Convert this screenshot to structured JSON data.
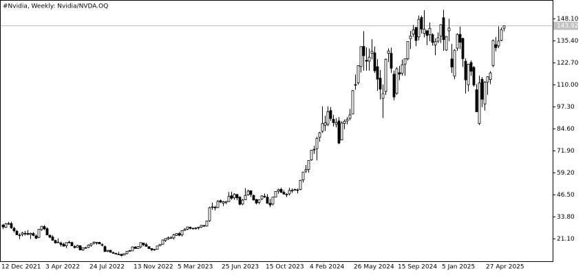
{
  "chart_data": {
    "type": "candlestick",
    "title": "#Nvidia, Weekly:  Nvidia/NVDA.OQ",
    "ylim": [
      8.0,
      158.8
    ],
    "yticks": [
      {
        "value": 21.1,
        "label": "21.10"
      },
      {
        "value": 33.8,
        "label": "33.80"
      },
      {
        "value": 46.5,
        "label": "46.50"
      },
      {
        "value": 59.2,
        "label": "59.20"
      },
      {
        "value": 71.9,
        "label": "71.90"
      },
      {
        "value": 84.6,
        "label": "84.60"
      },
      {
        "value": 97.3,
        "label": "97.30"
      },
      {
        "value": 110.0,
        "label": "110.00"
      },
      {
        "value": 122.7,
        "label": "122.70"
      },
      {
        "value": 135.4,
        "label": "135.40"
      },
      {
        "value": 148.1,
        "label": "148.10"
      }
    ],
    "last_price": 143.92,
    "up_color": "#ffffff",
    "down_color": "#000000",
    "line_color": "#000000",
    "price_line_color": "#c0c0c0",
    "categories": [
      "12 Dec 2021",
      null,
      null,
      null,
      null,
      null,
      null,
      null,
      null,
      null,
      null,
      null,
      null,
      null,
      null,
      null,
      "3 Apr 2022",
      null,
      null,
      null,
      null,
      null,
      null,
      null,
      null,
      null,
      null,
      null,
      null,
      null,
      null,
      null,
      "24 Jul 2022",
      null,
      null,
      null,
      null,
      null,
      null,
      null,
      null,
      null,
      null,
      null,
      null,
      null,
      null,
      null,
      "13 Nov 2022",
      null,
      null,
      null,
      null,
      null,
      null,
      null,
      null,
      null,
      null,
      null,
      null,
      null,
      null,
      null,
      "5 Mar 2023",
      null,
      null,
      null,
      null,
      null,
      null,
      null,
      null,
      null,
      null,
      null,
      null,
      null,
      null,
      null,
      "25 Jun 2023",
      null,
      null,
      null,
      null,
      null,
      null,
      null,
      null,
      null,
      null,
      null,
      null,
      null,
      null,
      null,
      "15 Oct 2023",
      null,
      null,
      null,
      null,
      null,
      null,
      null,
      null,
      null,
      null,
      null,
      null,
      null,
      null,
      null,
      "4 Feb 2024",
      null,
      null,
      null,
      null,
      null,
      null,
      null,
      null,
      null,
      null,
      null,
      null,
      null,
      null,
      null,
      "26 May 2024",
      null,
      null,
      null,
      null,
      null,
      null,
      null,
      null,
      null,
      null,
      null,
      null,
      null,
      null,
      null,
      "15 Sep 2024",
      null,
      null,
      null,
      null,
      null,
      null,
      null,
      null,
      null,
      null,
      null,
      null,
      null,
      null,
      null,
      "5 Jan 2025",
      null,
      null,
      null,
      null,
      null,
      null,
      null,
      null,
      null,
      null,
      null,
      null,
      null,
      null,
      null,
      "27 Apr 2025",
      null,
      null,
      null,
      null,
      null,
      null
    ],
    "ohlc": [
      [
        28.9,
        29.6,
        26.6,
        27.8
      ],
      [
        27.6,
        30.0,
        27.2,
        29.6
      ],
      [
        29.8,
        30.7,
        29.0,
        29.4
      ],
      [
        29.8,
        30.8,
        26.7,
        27.3
      ],
      [
        27.0,
        27.9,
        24.6,
        25.6
      ],
      [
        25.3,
        26.1,
        23.2,
        23.3
      ],
      [
        23.1,
        24.0,
        20.8,
        22.9
      ],
      [
        23.5,
        25.0,
        22.4,
        24.3
      ],
      [
        24.1,
        25.5,
        22.9,
        24.1
      ],
      [
        24.0,
        26.0,
        23.0,
        23.6
      ],
      [
        23.5,
        24.5,
        20.9,
        24.1
      ],
      [
        24.0,
        24.8,
        22.5,
        22.9
      ],
      [
        22.6,
        23.5,
        20.8,
        21.3
      ],
      [
        21.8,
        26.6,
        21.4,
        26.4
      ],
      [
        26.3,
        28.4,
        25.5,
        28.2
      ],
      [
        28.0,
        28.9,
        26.0,
        26.7
      ],
      [
        26.8,
        27.5,
        23.0,
        23.2
      ],
      [
        23.0,
        23.4,
        21.3,
        21.9
      ],
      [
        22.0,
        23.0,
        20.0,
        20.1
      ],
      [
        20.0,
        20.4,
        18.2,
        18.6
      ],
      [
        19.0,
        21.2,
        18.5,
        18.7
      ],
      [
        18.5,
        19.3,
        16.5,
        17.7
      ],
      [
        17.8,
        18.7,
        16.5,
        16.7
      ],
      [
        16.9,
        18.9,
        15.6,
        18.8
      ],
      [
        19.0,
        19.9,
        18.3,
        18.7
      ],
      [
        18.8,
        19.3,
        16.9,
        16.9
      ],
      [
        16.5,
        17.3,
        15.5,
        15.9
      ],
      [
        16.0,
        17.5,
        15.8,
        17.1
      ],
      [
        17.0,
        17.2,
        14.5,
        14.5
      ],
      [
        14.5,
        15.9,
        14.0,
        15.8
      ],
      [
        15.6,
        16.4,
        15.3,
        15.8
      ],
      [
        16.0,
        17.7,
        15.6,
        17.3
      ],
      [
        17.2,
        18.2,
        16.4,
        18.2
      ],
      [
        18.5,
        19.3,
        17.6,
        19.1
      ],
      [
        18.8,
        19.2,
        17.5,
        18.8
      ],
      [
        18.9,
        19.2,
        17.9,
        18.0
      ],
      [
        17.6,
        18.3,
        16.6,
        17.2
      ],
      [
        16.5,
        17.1,
        13.5,
        13.6
      ],
      [
        13.8,
        14.4,
        13.3,
        14.3
      ],
      [
        14.3,
        14.6,
        12.9,
        13.2
      ],
      [
        13.0,
        13.6,
        12.4,
        12.6
      ],
      [
        12.5,
        12.9,
        12.0,
        12.1
      ],
      [
        12.0,
        13.4,
        11.9,
        12.0
      ],
      [
        12.0,
        12.3,
        10.8,
        11.3
      ],
      [
        11.6,
        12.5,
        11.4,
        12.4
      ],
      [
        12.4,
        13.9,
        12.0,
        13.8
      ],
      [
        13.8,
        14.5,
        13.5,
        14.1
      ],
      [
        14.0,
        16.5,
        13.9,
        16.3
      ],
      [
        16.2,
        16.7,
        15.2,
        15.4
      ],
      [
        15.3,
        16.7,
        15.1,
        16.5
      ],
      [
        16.3,
        18.9,
        15.5,
        18.8
      ],
      [
        18.5,
        18.7,
        16.8,
        17.5
      ],
      [
        17.6,
        18.6,
        16.4,
        16.6
      ],
      [
        16.4,
        16.7,
        15.1,
        15.3
      ],
      [
        15.3,
        15.5,
        14.0,
        14.6
      ],
      [
        14.8,
        15.2,
        14.1,
        14.8
      ],
      [
        14.9,
        17.0,
        14.8,
        16.8
      ],
      [
        16.9,
        17.9,
        16.7,
        17.8
      ],
      [
        17.8,
        20.4,
        17.6,
        20.3
      ],
      [
        20.0,
        21.3,
        19.1,
        21.1
      ],
      [
        21.0,
        22.3,
        20.3,
        21.6
      ],
      [
        21.5,
        22.5,
        21.1,
        21.3
      ],
      [
        21.5,
        23.8,
        20.6,
        23.3
      ],
      [
        23.0,
        24.1,
        22.7,
        24.0
      ],
      [
        24.0,
        24.9,
        22.5,
        23.0
      ],
      [
        23.2,
        25.9,
        22.3,
        25.7
      ],
      [
        25.8,
        27.1,
        25.5,
        26.5
      ],
      [
        26.5,
        27.9,
        26.0,
        27.8
      ],
      [
        27.6,
        28.0,
        26.4,
        27.0
      ],
      [
        27.0,
        27.4,
        26.4,
        26.8
      ],
      [
        26.9,
        27.6,
        26.2,
        27.2
      ],
      [
        27.2,
        27.9,
        26.3,
        27.7
      ],
      [
        27.7,
        29.0,
        27.3,
        28.7
      ],
      [
        28.6,
        29.0,
        27.8,
        28.3
      ],
      [
        28.3,
        31.4,
        28.1,
        31.2
      ],
      [
        31.4,
        39.5,
        30.7,
        38.9
      ],
      [
        39.4,
        41.9,
        37.7,
        39.3
      ],
      [
        39.2,
        40.0,
        37.3,
        38.8
      ],
      [
        39.0,
        43.3,
        38.7,
        42.6
      ],
      [
        43.0,
        43.6,
        41.6,
        42.2
      ],
      [
        41.5,
        42.8,
        39.9,
        42.3
      ],
      [
        42.0,
        42.7,
        41.0,
        42.5
      ],
      [
        42.5,
        48.0,
        42.2,
        45.5
      ],
      [
        45.8,
        48.1,
        43.5,
        44.4
      ],
      [
        44.6,
        47.3,
        43.5,
        46.7
      ],
      [
        46.5,
        46.9,
        43.2,
        44.6
      ],
      [
        45.0,
        45.5,
        40.3,
        40.9
      ],
      [
        41.0,
        44.0,
        40.4,
        43.3
      ],
      [
        43.5,
        50.2,
        43.3,
        46.0
      ],
      [
        46.3,
        49.3,
        45.9,
        48.5
      ],
      [
        48.7,
        48.9,
        45.1,
        46.5
      ],
      [
        46.0,
        46.5,
        43.0,
        43.4
      ],
      [
        43.6,
        44.0,
        40.9,
        41.6
      ],
      [
        41.9,
        43.6,
        41.0,
        43.5
      ],
      [
        44.0,
        46.1,
        43.2,
        45.7
      ],
      [
        45.3,
        47.1,
        44.5,
        45.5
      ],
      [
        45.0,
        46.8,
        41.3,
        41.4
      ],
      [
        41.4,
        44.0,
        39.2,
        40.5
      ],
      [
        41.0,
        45.2,
        40.2,
        45.0
      ],
      [
        45.0,
        48.5,
        44.9,
        48.3
      ],
      [
        48.5,
        49.9,
        47.0,
        49.3
      ],
      [
        49.5,
        50.5,
        47.4,
        47.8
      ],
      [
        47.8,
        49.0,
        46.5,
        46.8
      ],
      [
        46.5,
        47.3,
        45.0,
        46.6
      ],
      [
        46.9,
        50.4,
        46.0,
        48.9
      ],
      [
        48.9,
        50.0,
        47.5,
        48.8
      ],
      [
        49.0,
        49.9,
        48.7,
        49.5
      ],
      [
        49.2,
        50.0,
        47.2,
        49.0
      ],
      [
        49.5,
        55.0,
        49.0,
        54.7
      ],
      [
        55.0,
        59.5,
        53.5,
        59.5
      ],
      [
        60.0,
        63.5,
        59.0,
        61.0
      ],
      [
        61.0,
        66.3,
        59.2,
        66.1
      ],
      [
        66.5,
        72.3,
        66.0,
        72.1
      ],
      [
        72.5,
        74.6,
        70.0,
        72.6
      ],
      [
        73.0,
        79.8,
        66.3,
        78.9
      ],
      [
        79.5,
        82.7,
        77.0,
        82.2
      ],
      [
        83.0,
        97.4,
        82.0,
        87.5
      ],
      [
        86.5,
        92.0,
        83.2,
        87.9
      ],
      [
        87.0,
        97.4,
        86.0,
        94.3
      ],
      [
        95.0,
        97.0,
        89.0,
        90.4
      ],
      [
        90.0,
        92.5,
        85.8,
        88.0
      ],
      [
        87.0,
        90.6,
        85.3,
        88.1
      ],
      [
        89.0,
        91.2,
        75.6,
        76.2
      ],
      [
        78.0,
        88.7,
        77.8,
        87.8
      ],
      [
        87.6,
        89.8,
        84.2,
        88.8
      ],
      [
        89.0,
        91.2,
        87.0,
        89.9
      ],
      [
        90.5,
        95.9,
        89.4,
        92.5
      ],
      [
        93.0,
        106.8,
        93.0,
        106.5
      ],
      [
        110.0,
        115.8,
        107.0,
        109.6
      ],
      [
        111.0,
        121.0,
        110.0,
        120.9
      ],
      [
        120.4,
        132.0,
        117.0,
        131.9
      ],
      [
        132.0,
        140.8,
        118.0,
        126.6
      ],
      [
        124.0,
        131.4,
        118.0,
        123.5
      ],
      [
        123.5,
        130.7,
        118.0,
        125.8
      ],
      [
        128.0,
        136.2,
        124.5,
        129.2
      ],
      [
        128.3,
        131.9,
        116.7,
        117.9
      ],
      [
        120.3,
        124.7,
        106.3,
        113.1
      ],
      [
        113.7,
        118.3,
        101.4,
        107.3
      ],
      [
        102.0,
        110.0,
        90.7,
        104.8
      ],
      [
        106.0,
        125.0,
        104.0,
        124.6
      ],
      [
        128.0,
        130.8,
        123.0,
        129.4
      ],
      [
        128.0,
        131.3,
        116.7,
        119.4
      ],
      [
        116.0,
        118.0,
        100.9,
        102.8
      ],
      [
        104.9,
        120.0,
        104.1,
        119.1
      ],
      [
        116.8,
        120.8,
        112.5,
        116.0
      ],
      [
        116.6,
        124.4,
        115.1,
        121.4
      ],
      [
        121.8,
        125.0,
        115.1,
        124.9
      ],
      [
        124.9,
        135.0,
        124.0,
        134.8
      ],
      [
        136.5,
        140.9,
        130.5,
        138.0
      ],
      [
        139.1,
        144.4,
        137.5,
        141.5
      ],
      [
        143.0,
        143.1,
        132.1,
        135.4
      ],
      [
        137.5,
        149.8,
        135.5,
        147.6
      ],
      [
        148.7,
        149.8,
        139.5,
        142.0
      ],
      [
        139.5,
        152.9,
        137.2,
        142.0
      ],
      [
        141.0,
        141.6,
        132.7,
        138.3
      ],
      [
        138.8,
        145.8,
        135.0,
        142.4
      ],
      [
        138.8,
        139.6,
        132.5,
        134.3
      ],
      [
        132.8,
        136.7,
        126.9,
        134.7
      ],
      [
        135.0,
        140.0,
        134.0,
        137.0
      ],
      [
        138.0,
        144.8,
        134.0,
        144.5
      ],
      [
        148.6,
        153.1,
        129.5,
        135.9
      ],
      [
        129.9,
        138.0,
        129.5,
        137.7
      ],
      [
        141.0,
        148.0,
        135.1,
        142.6
      ],
      [
        124.8,
        133.5,
        116.7,
        120.1
      ],
      [
        114.8,
        130.4,
        113.0,
        129.8
      ],
      [
        131.0,
        139.6,
        129.5,
        138.9
      ],
      [
        139.0,
        143.4,
        130.5,
        134.4
      ],
      [
        136.6,
        137.0,
        120.2,
        124.9
      ],
      [
        123.5,
        125.1,
        104.8,
        112.7
      ],
      [
        109.9,
        122.0,
        106.0,
        121.7
      ],
      [
        122.7,
        124.0,
        115.0,
        117.7
      ],
      [
        119.9,
        120.7,
        108.8,
        109.7
      ],
      [
        107.0,
        110.2,
        94.0,
        94.3
      ],
      [
        87.5,
        115.1,
        86.6,
        110.9
      ],
      [
        113.0,
        114.3,
        96.9,
        101.5
      ],
      [
        98.8,
        111.9,
        95.0,
        111.4
      ],
      [
        111.5,
        114.8,
        104.1,
        114.5
      ],
      [
        112.9,
        117.7,
        110.2,
        116.7
      ],
      [
        121.0,
        136.0,
        120.0,
        135.4
      ],
      [
        133.0,
        137.4,
        129.2,
        131.3
      ],
      [
        132.3,
        143.5,
        131.0,
        135.1
      ],
      [
        135.5,
        143.0,
        135.0,
        141.7
      ],
      [
        142.5,
        144.0,
        140.8,
        143.9
      ]
    ]
  }
}
